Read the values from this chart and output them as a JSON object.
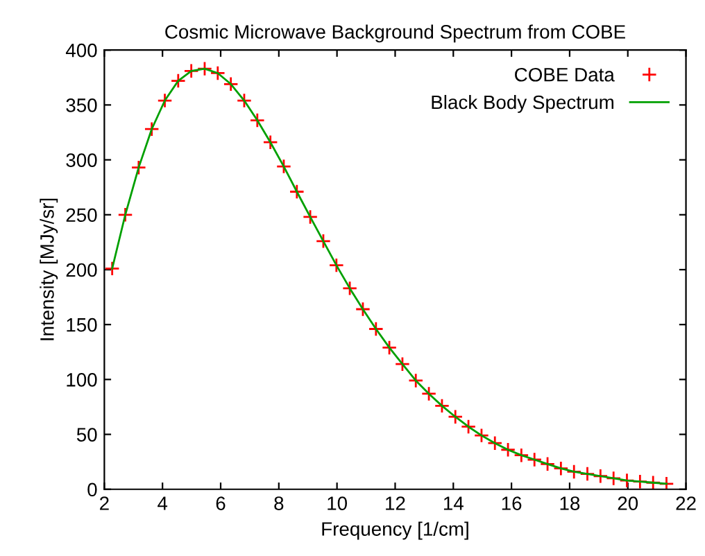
{
  "chart_data": {
    "type": "scatter",
    "title": "Cosmic Microwave Background Spectrum from COBE",
    "xlabel": "Frequency [1/cm]",
    "ylabel": "Intensity [MJy/sr]",
    "xlim": [
      2,
      22
    ],
    "xticks": [
      2,
      4,
      6,
      8,
      10,
      12,
      14,
      16,
      18,
      20,
      22
    ],
    "ylim": [
      0,
      400
    ],
    "yticks": [
      0,
      50,
      100,
      150,
      200,
      250,
      300,
      350,
      400
    ],
    "grid": false,
    "legend": "top right",
    "x": [
      2.27,
      2.72,
      3.18,
      3.63,
      4.08,
      4.54,
      4.99,
      5.45,
      5.9,
      6.35,
      6.81,
      7.26,
      7.71,
      8.17,
      8.62,
      9.08,
      9.53,
      9.98,
      10.44,
      10.89,
      11.34,
      11.8,
      12.25,
      12.71,
      13.16,
      13.61,
      14.07,
      14.52,
      14.97,
      15.43,
      15.88,
      16.34,
      16.79,
      17.24,
      17.7,
      18.15,
      18.61,
      19.06,
      19.51,
      19.97,
      20.42,
      20.87,
      21.33
    ],
    "series": [
      {
        "name": "COBE Data",
        "marker": "cross",
        "color": "#ff0000",
        "values": [
          201,
          250,
          293,
          328,
          354,
          372,
          381,
          383,
          379,
          369,
          354,
          336,
          316,
          294,
          271,
          248,
          226,
          204,
          183,
          164,
          146,
          129,
          114,
          99,
          87,
          76,
          66,
          57,
          49,
          42,
          36,
          31,
          27,
          23,
          19,
          16,
          14,
          12,
          10,
          8,
          7,
          6,
          5
        ]
      },
      {
        "name": "Black Body Spectrum",
        "type": "line",
        "marker": "none",
        "line_style": "solid",
        "color": "#00a000",
        "values": [
          201,
          250,
          293,
          328,
          354,
          372,
          381,
          383,
          379,
          369,
          354,
          336,
          316,
          294,
          271,
          248,
          226,
          204,
          183,
          164,
          146,
          129,
          114,
          99,
          87,
          76,
          66,
          57,
          49,
          42,
          36,
          31,
          27,
          23,
          19,
          16,
          14,
          12,
          10,
          8,
          7,
          6,
          5
        ]
      }
    ]
  }
}
